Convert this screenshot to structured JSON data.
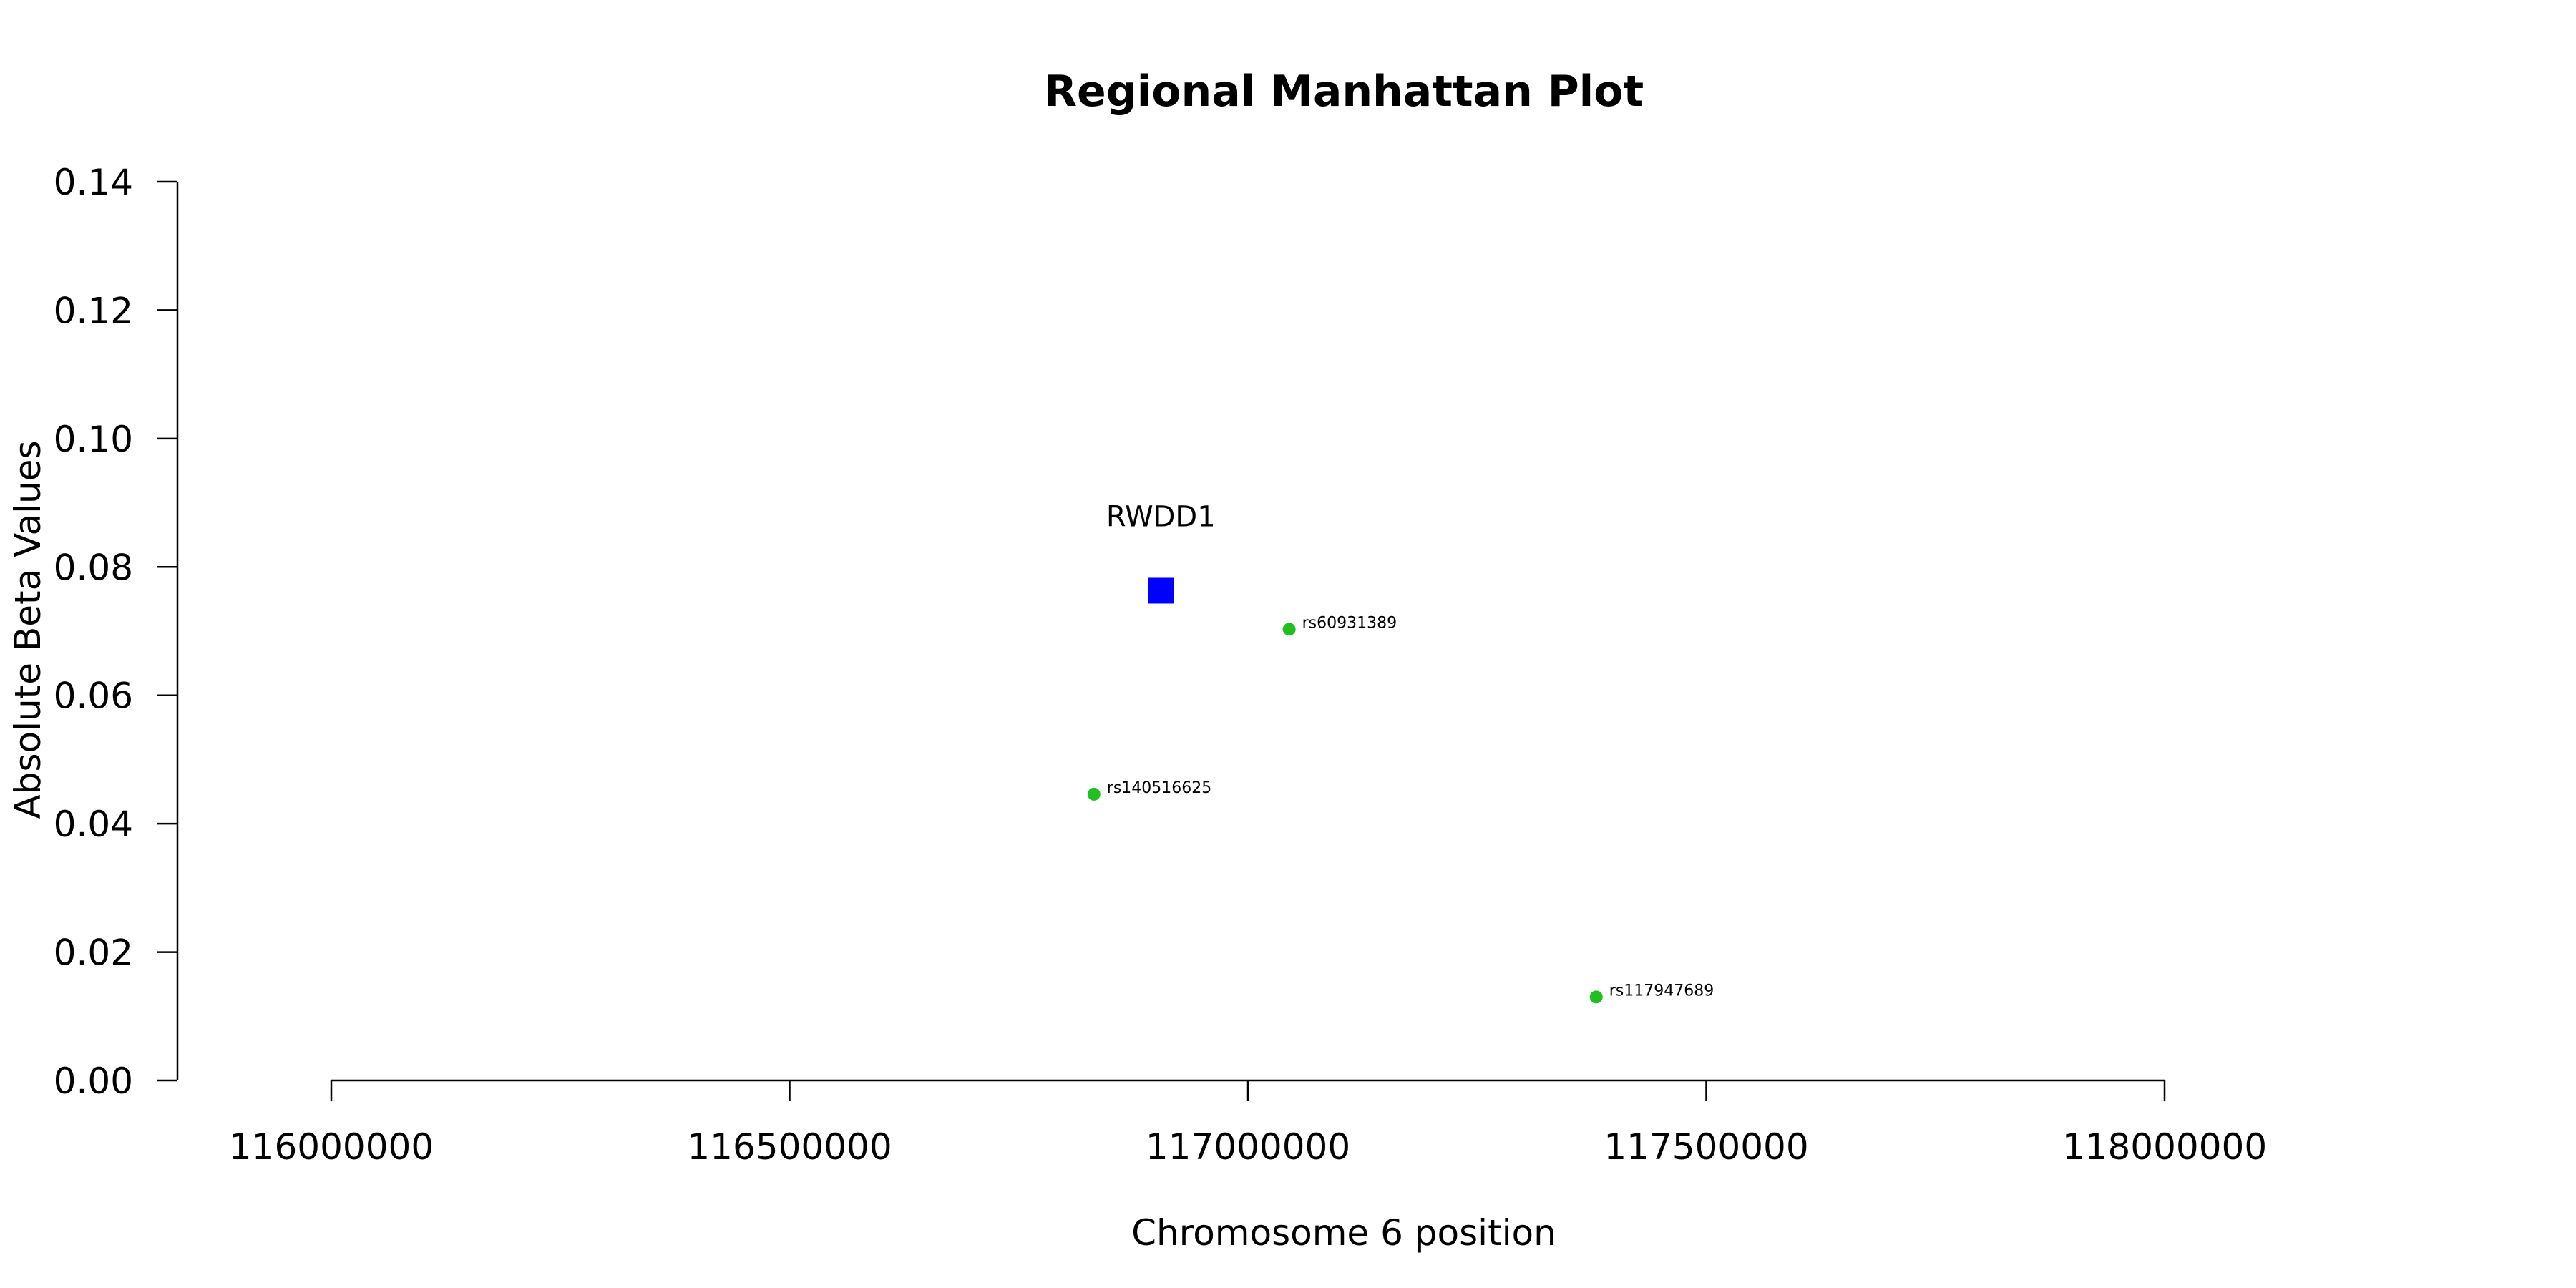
{
  "chart_data": {
    "type": "scatter",
    "title": "Regional Manhattan Plot",
    "xlabel": "Chromosome 6 position",
    "ylabel": "Absolute Beta Values",
    "xlim": [
      116000000,
      118000000
    ],
    "ylim": [
      0.0,
      0.14
    ],
    "xticks": [
      116000000,
      116500000,
      117000000,
      117500000,
      118000000
    ],
    "xtick_labels": [
      "116000000",
      "116500000",
      "117000000",
      "117500000",
      "118000000"
    ],
    "yticks": [
      0.0,
      0.02,
      0.04,
      0.06,
      0.08,
      0.1,
      0.12,
      0.14
    ],
    "ytick_labels": [
      "0.00",
      "0.02",
      "0.04",
      "0.06",
      "0.08",
      "0.10",
      "0.12",
      "0.14"
    ],
    "grid": false,
    "series": [
      {
        "marker": "square",
        "color": "#0000ff",
        "points": [
          {
            "x": 116905000,
            "y": 0.0763,
            "label": "RWDD1"
          }
        ]
      },
      {
        "marker": "circle",
        "color": "#1fc01f",
        "points": [
          {
            "x": 117045000,
            "y": 0.0703,
            "label": "rs60931389"
          },
          {
            "x": 116832000,
            "y": 0.0446,
            "label": "rs140516625"
          },
          {
            "x": 117380000,
            "y": 0.013,
            "label": "rs117947689"
          }
        ]
      }
    ]
  }
}
